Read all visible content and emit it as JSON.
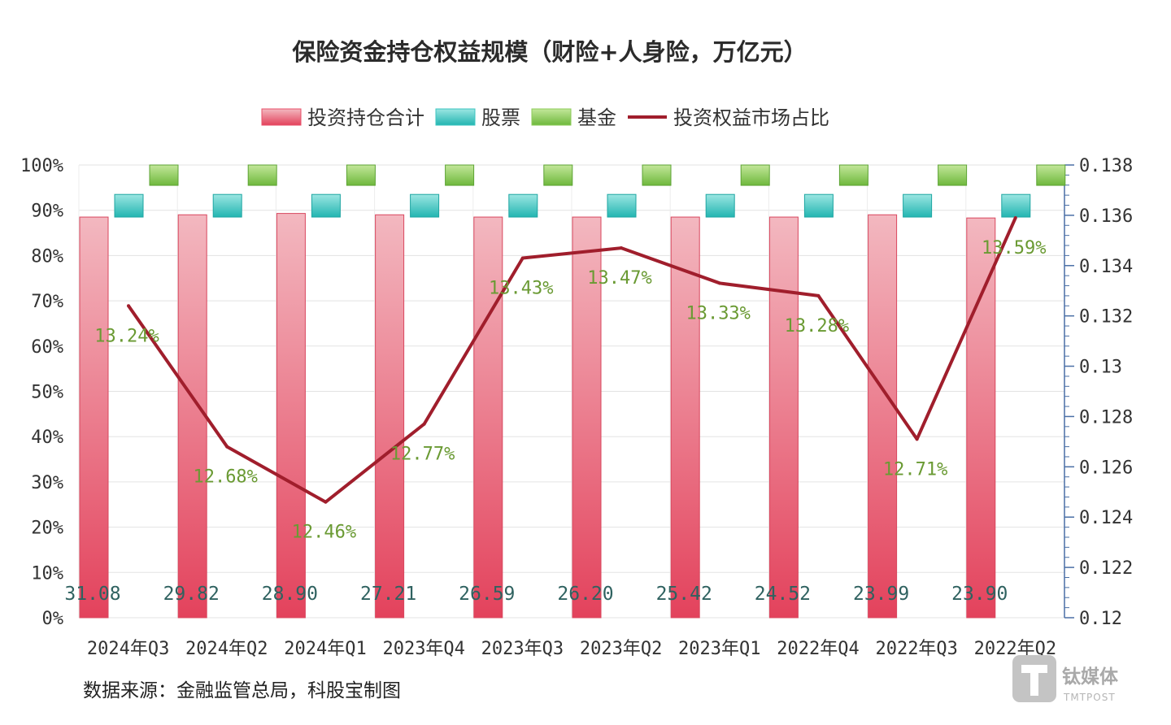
{
  "chart_data": {
    "type": "bar",
    "title": "保险资金持仓权益规模（财险+人身险，万亿元）",
    "legend": [
      {
        "name": "投资持仓合计",
        "kind": "bar",
        "color": "#e8506a"
      },
      {
        "name": "股票",
        "kind": "bar",
        "color": "#3cc4c0"
      },
      {
        "name": "基金",
        "kind": "bar",
        "color": "#8ccb5a"
      },
      {
        "name": "投资权益市场占比",
        "kind": "line",
        "color": "#a01e2c"
      }
    ],
    "legend_position": "top-center",
    "categories": [
      "2024年Q3",
      "2024年Q2",
      "2024年Q1",
      "2023年Q4",
      "2023年Q3",
      "2023年Q2",
      "2023年Q1",
      "2022年Q4",
      "2022年Q3",
      "2022年Q2"
    ],
    "series": [
      {
        "name": "投资持仓合计",
        "axis": "left",
        "values_percent": [
          88.5,
          89.0,
          89.3,
          89.0,
          88.5,
          88.5,
          88.5,
          88.5,
          89.0,
          88.3
        ],
        "labels": [
          "31.08",
          "29.82",
          "28.90",
          "27.21",
          "26.59",
          "26.20",
          "25.42",
          "24.52",
          "23.99",
          "23.90"
        ]
      },
      {
        "name": "股票",
        "axis": "left",
        "values_percent": [
          93.5,
          93.5,
          93.5,
          93.5,
          93.5,
          93.5,
          93.5,
          93.5,
          93.5,
          93.5
        ],
        "base_percent": 88.5
      },
      {
        "name": "基金",
        "axis": "left",
        "values_percent": [
          100.5,
          100.5,
          100.5,
          100.5,
          100.5,
          100.5,
          100.5,
          100.5,
          100.5,
          100.5
        ],
        "base_percent": 95.5
      },
      {
        "name": "投资权益市场占比",
        "axis": "right",
        "type": "line",
        "values": [
          0.1324,
          0.1268,
          0.1246,
          0.1277,
          0.1343,
          0.1347,
          0.1333,
          0.1328,
          0.1271,
          0.1359
        ],
        "labels": [
          "13.24%",
          "12.68%",
          "12.46%",
          "12.77%",
          "13.43%",
          "13.47%",
          "13.33%",
          "13.28%",
          "12.71%",
          "13.59%"
        ]
      }
    ],
    "y_left": {
      "min": 0,
      "max": 100,
      "ticks": [
        "0%",
        "10%",
        "20%",
        "30%",
        "40%",
        "50%",
        "60%",
        "70%",
        "80%",
        "90%",
        "100%"
      ]
    },
    "y_right": {
      "min": 0.12,
      "max": 0.138,
      "ticks": [
        "0.12",
        "0.122",
        "0.124",
        "0.126",
        "0.128",
        "0.13",
        "0.132",
        "0.134",
        "0.136",
        "0.138"
      ]
    },
    "grid": true
  },
  "source_note": "数据来源：金融监管总局，科股宝制图",
  "watermark": {
    "name": "钛媒体",
    "sub": "TMTPOST"
  }
}
